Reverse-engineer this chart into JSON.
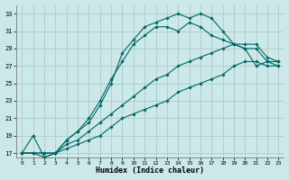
{
  "xlabel": "Humidex (Indice chaleur)",
  "background_color": "#cce8e8",
  "grid_color": "#aacccc",
  "line_color": "#006666",
  "xlim": [
    -0.5,
    23.5
  ],
  "ylim": [
    16.5,
    34
  ],
  "yticks": [
    17,
    19,
    21,
    23,
    25,
    27,
    29,
    31,
    33
  ],
  "xticks": [
    0,
    1,
    2,
    3,
    4,
    5,
    6,
    7,
    8,
    9,
    10,
    11,
    12,
    13,
    14,
    15,
    16,
    17,
    18,
    19,
    20,
    21,
    22,
    23
  ],
  "series1": [
    17.0,
    19.0,
    16.5,
    17.0,
    18.5,
    19.5,
    20.5,
    22.5,
    25.0,
    28.5,
    30.0,
    31.5,
    32.0,
    32.5,
    33.0,
    32.5,
    33.0,
    32.5,
    31.0,
    29.5,
    29.0,
    27.0,
    27.5,
    27.5
  ],
  "series2": [
    17.0,
    17.0,
    16.5,
    17.0,
    18.5,
    19.5,
    21.0,
    23.0,
    25.5,
    27.5,
    29.5,
    30.5,
    31.5,
    31.5,
    31.0,
    32.0,
    31.5,
    30.5,
    30.0,
    29.5,
    29.0,
    29.0,
    27.5,
    27.0
  ],
  "series3": [
    17.0,
    17.0,
    17.0,
    17.0,
    18.0,
    18.5,
    19.5,
    20.5,
    21.5,
    22.5,
    23.5,
    24.5,
    25.5,
    26.0,
    27.0,
    27.5,
    28.0,
    28.5,
    29.0,
    29.5,
    29.5,
    29.5,
    28.0,
    27.5
  ],
  "series4": [
    17.0,
    17.0,
    17.0,
    17.0,
    17.5,
    18.0,
    18.5,
    19.0,
    20.0,
    21.0,
    21.5,
    22.0,
    22.5,
    23.0,
    24.0,
    24.5,
    25.0,
    25.5,
    26.0,
    27.0,
    27.5,
    27.5,
    27.0,
    27.0
  ]
}
